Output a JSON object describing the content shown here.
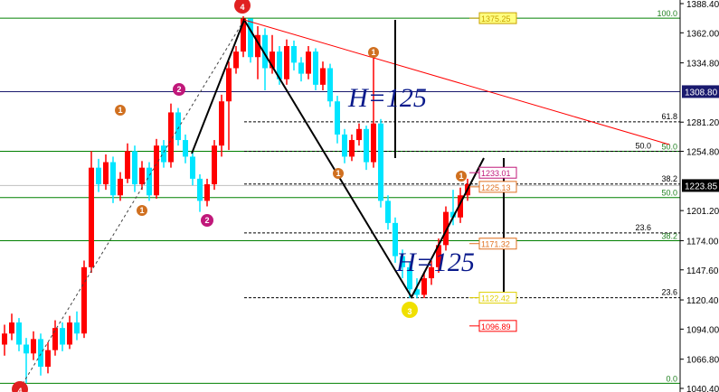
{
  "chart_data": {
    "type": "candlestick",
    "ylim": [
      1040.4,
      1388.4
    ],
    "y_ticks": [
      "1388.40",
      "1362.00",
      "1334.80",
      "1281.20",
      "1254.80",
      "1201.20",
      "1174.00",
      "1147.60",
      "1120.40",
      "1094.00",
      "1066.80",
      "1040.40"
    ],
    "current_price": "1223.85",
    "hline_price": "1308.80",
    "candles": [
      [
        1080,
        1098,
        1070,
        1090
      ],
      [
        1090,
        1108,
        1084,
        1100
      ],
      [
        1100,
        1104,
        1074,
        1080
      ],
      [
        1080,
        1086,
        1045,
        1072
      ],
      [
        1072,
        1092,
        1066,
        1085
      ],
      [
        1085,
        1090,
        1052,
        1060
      ],
      [
        1060,
        1082,
        1054,
        1075
      ],
      [
        1075,
        1102,
        1070,
        1095
      ],
      [
        1095,
        1100,
        1074,
        1080
      ],
      [
        1080,
        1106,
        1076,
        1100
      ],
      [
        1100,
        1110,
        1084,
        1090
      ],
      [
        1090,
        1156,
        1086,
        1150
      ],
      [
        1150,
        1255,
        1145,
        1240
      ],
      [
        1240,
        1248,
        1218,
        1225
      ],
      [
        1225,
        1252,
        1220,
        1245
      ],
      [
        1245,
        1250,
        1208,
        1215
      ],
      [
        1215,
        1236,
        1210,
        1230
      ],
      [
        1230,
        1262,
        1226,
        1255
      ],
      [
        1255,
        1260,
        1218,
        1225
      ],
      [
        1225,
        1246,
        1220,
        1240
      ],
      [
        1240,
        1245,
        1210,
        1215
      ],
      [
        1215,
        1266,
        1212,
        1260
      ],
      [
        1260,
        1265,
        1240,
        1245
      ],
      [
        1245,
        1298,
        1240,
        1290
      ],
      [
        1290,
        1294,
        1260,
        1265
      ],
      [
        1265,
        1270,
        1244,
        1250
      ],
      [
        1250,
        1254,
        1224,
        1230
      ],
      [
        1230,
        1234,
        1200,
        1210
      ],
      [
        1210,
        1230,
        1205,
        1225
      ],
      [
        1225,
        1265,
        1220,
        1260
      ],
      [
        1260,
        1306,
        1250,
        1300
      ],
      [
        1300,
        1336,
        1256,
        1330
      ],
      [
        1330,
        1350,
        1325,
        1345
      ],
      [
        1345,
        1377,
        1340,
        1375
      ],
      [
        1375,
        1372,
        1335,
        1340
      ],
      [
        1340,
        1368,
        1320,
        1360
      ],
      [
        1360,
        1366,
        1310,
        1330
      ],
      [
        1330,
        1360,
        1325,
        1345
      ],
      [
        1345,
        1350,
        1315,
        1320
      ],
      [
        1320,
        1356,
        1315,
        1350
      ],
      [
        1350,
        1355,
        1328,
        1335
      ],
      [
        1335,
        1340,
        1318,
        1325
      ],
      [
        1325,
        1350,
        1320,
        1345
      ],
      [
        1345,
        1348,
        1310,
        1315
      ],
      [
        1315,
        1336,
        1310,
        1330
      ],
      [
        1330,
        1334,
        1295,
        1300
      ],
      [
        1300,
        1305,
        1262,
        1270
      ],
      [
        1270,
        1275,
        1244,
        1250
      ],
      [
        1250,
        1270,
        1246,
        1265
      ],
      [
        1265,
        1280,
        1260,
        1275
      ],
      [
        1275,
        1278,
        1238,
        1245
      ],
      [
        1245,
        1340,
        1240,
        1280
      ],
      [
        1280,
        1284,
        1204,
        1210
      ],
      [
        1210,
        1215,
        1184,
        1190
      ],
      [
        1190,
        1195,
        1154,
        1160
      ],
      [
        1160,
        1166,
        1140,
        1150
      ],
      [
        1150,
        1155,
        1122,
        1130
      ],
      [
        1130,
        1140,
        1122,
        1125
      ],
      [
        1125,
        1146,
        1122,
        1140
      ],
      [
        1140,
        1156,
        1134,
        1150
      ],
      [
        1150,
        1176,
        1145,
        1170
      ],
      [
        1170,
        1205,
        1165,
        1200
      ],
      [
        1200,
        1220,
        1188,
        1195
      ],
      [
        1195,
        1222,
        1190,
        1215
      ],
      [
        1215,
        1230,
        1210,
        1225
      ]
    ],
    "up_color": "#ff0000",
    "down_color": "#00e5ff",
    "price_labels": [
      {
        "text": "1375.25",
        "price": 1375.25,
        "color": "#c8a000",
        "bg": "#ffff80"
      },
      {
        "text": "1233.01",
        "price": 1233.01,
        "color": "#c0187a",
        "bg": "#ffffff"
      },
      {
        "text": "1225.13",
        "price": 1225.13,
        "color": "#e07020",
        "bg": "#ffffff"
      },
      {
        "text": "1171.32",
        "price": 1171.32,
        "color": "#e07020",
        "bg": "#ffffff"
      },
      {
        "text": "1122.42",
        "price": 1122.42,
        "color": "#e0d000",
        "bg": "#ffffff"
      },
      {
        "text": "1096.89",
        "price": 1096.89,
        "color": "#ff0000",
        "bg": "#ffffff"
      }
    ],
    "fib_green": [
      {
        "label": "100.0",
        "price": 1375.25
      },
      {
        "label": "50.0",
        "price": 1254.8
      },
      {
        "label": "50.0",
        "price": 1213
      },
      {
        "label": "38.2",
        "price": 1174
      },
      {
        "label": "0.0",
        "price": 1045
      }
    ],
    "fib_dashed": [
      {
        "label": "61.8",
        "price": 1281.5
      },
      {
        "label": "50.0",
        "price": 1254.8
      },
      {
        "label": "38.2",
        "price": 1225.2
      },
      {
        "label": "23.6",
        "price": 1181
      },
      {
        "label": "23.6",
        "price": 1122.4
      }
    ],
    "wave_markers": [
      {
        "text": "4",
        "color": "#e02020"
      },
      {
        "text": "4",
        "color": "#e02020"
      },
      {
        "text": "2",
        "color": "#c0187a"
      },
      {
        "text": "2",
        "color": "#c0187a"
      },
      {
        "text": "1",
        "color": "#d07020"
      },
      {
        "text": "1",
        "color": "#d07020"
      },
      {
        "text": "1",
        "color": "#d07020"
      },
      {
        "text": "1",
        "color": "#d07020"
      },
      {
        "text": "1",
        "color": "#d07020"
      },
      {
        "text": "3",
        "color": "#f0e000"
      }
    ],
    "annotations": [
      "H=125",
      "H=125"
    ]
  }
}
